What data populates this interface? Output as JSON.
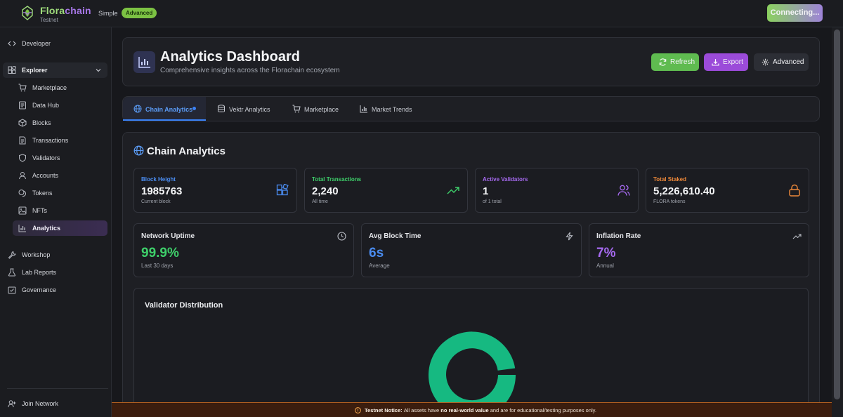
{
  "app": {
    "brand_flora": "Flora",
    "brand_chain": "chain",
    "network": "Testnet",
    "mode_simple": "Simple",
    "mode_advanced": "Advanced",
    "connect_label": "Connecting..."
  },
  "sidebar": {
    "developer": "Developer",
    "explorer": "Explorer",
    "sub_items": [
      "Marketplace",
      "Data Hub",
      "Blocks",
      "Transactions",
      "Validators",
      "Accounts",
      "Tokens",
      "NFTs",
      "Analytics"
    ],
    "workshop": "Workshop",
    "lab_reports": "Lab Reports",
    "governance": "Governance",
    "join_network": "Join Network"
  },
  "header": {
    "title": "Analytics Dashboard",
    "subtitle": "Comprehensive insights across the Florachain ecosystem",
    "refresh_label": "Refresh",
    "export_label": "Export",
    "advanced_label": "Advanced"
  },
  "tabs": [
    "Chain Analytics",
    "Vektr Analytics",
    "Marketplace",
    "Market Trends"
  ],
  "section": {
    "title": "Chain Analytics"
  },
  "stats": [
    {
      "label": "Block Height",
      "value": "1985763",
      "sub": "Current block",
      "color": "#4a8cf0"
    },
    {
      "label": "Total Transactions",
      "value": "2,240",
      "sub": "All time",
      "color": "#3ecf6a"
    },
    {
      "label": "Active Validators",
      "value": "1",
      "sub": "of 1 total",
      "color": "#a66af0"
    },
    {
      "label": "Total Staked",
      "value": "5,226,610.40",
      "sub": "FLORA tokens",
      "color": "#f08a3a"
    }
  ],
  "metrics": [
    {
      "label": "Network Uptime",
      "value": "99.9%",
      "sub": "Last 30 days",
      "color": "#3ecf6a"
    },
    {
      "label": "Avg Block Time",
      "value": "6s",
      "sub": "Average",
      "color": "#4a8cf0"
    },
    {
      "label": "Inflation Rate",
      "value": "7%",
      "sub": "Annual",
      "color": "#a66af0"
    }
  ],
  "validator_distribution": {
    "title": "Validator Distribution"
  },
  "notice": {
    "label": "Testnet Notice:",
    "text_a": "All assets have",
    "emphasis": "no real-world value",
    "text_b": "and are for educational/testing purposes only."
  }
}
